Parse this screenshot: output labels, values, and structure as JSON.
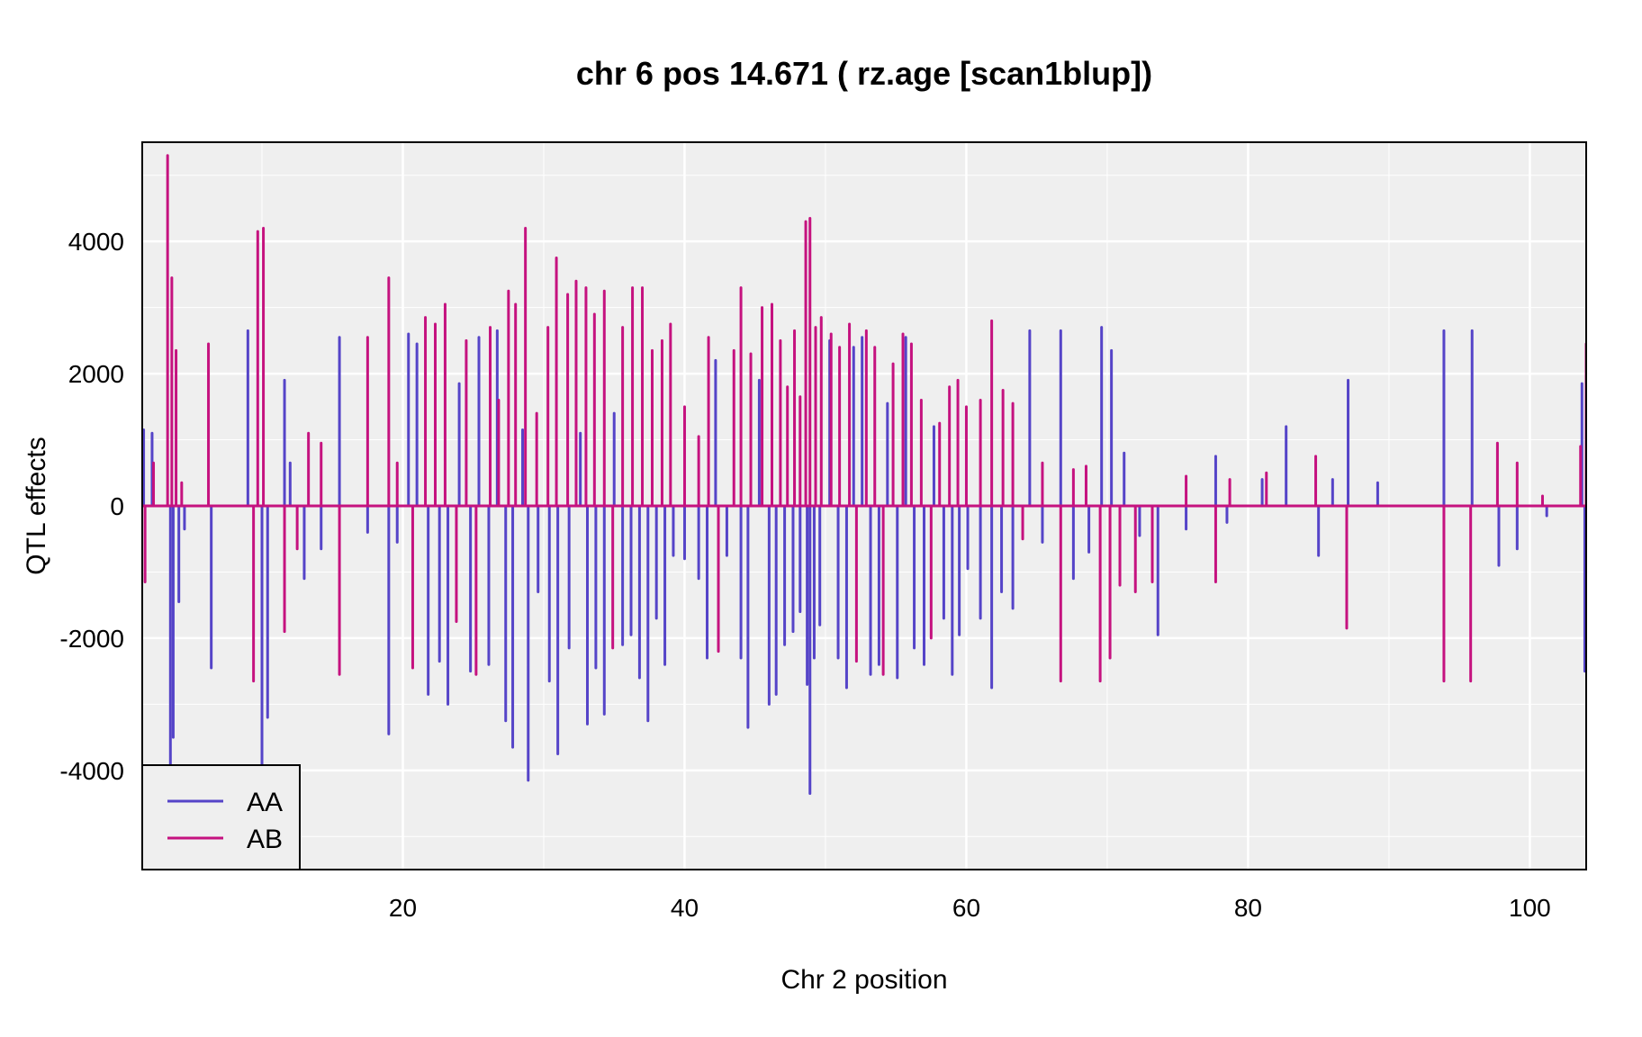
{
  "chart_data": {
    "type": "line",
    "title": "chr 6 pos 14.671 ( rz.age  [scan1blup])",
    "xlabel": "Chr 2 position",
    "ylabel": "QTL effects",
    "xlim": [
      1.5,
      104
    ],
    "ylim": [
      -5500,
      5500
    ],
    "x_ticks": [
      20,
      40,
      60,
      80,
      100
    ],
    "x_tick_labels": [
      "20",
      "40",
      "60",
      "80",
      "100"
    ],
    "y_ticks": [
      -4000,
      -2000,
      0,
      2000,
      4000
    ],
    "y_tick_labels": [
      "-4000",
      "-2000",
      "0",
      "2000",
      "4000"
    ],
    "grid": true,
    "background": "#efefef",
    "legend_position": "bottom-left",
    "series": [
      {
        "name": "AA",
        "color": "#5544c8",
        "spikes": [
          [
            1.6,
            1150
          ],
          [
            2.2,
            1100
          ],
          [
            3.5,
            -4000
          ],
          [
            3.7,
            -3500
          ],
          [
            4.1,
            -1450
          ],
          [
            4.5,
            -350
          ],
          [
            6.4,
            -2450
          ],
          [
            9.0,
            2650
          ],
          [
            10.0,
            -4000
          ],
          [
            10.4,
            -3200
          ],
          [
            11.6,
            1900
          ],
          [
            12.0,
            650
          ],
          [
            13.0,
            -1100
          ],
          [
            14.2,
            -650
          ],
          [
            15.5,
            2550
          ],
          [
            17.5,
            -400
          ],
          [
            19.0,
            -3450
          ],
          [
            19.6,
            -550
          ],
          [
            20.4,
            2600
          ],
          [
            21.0,
            2450
          ],
          [
            21.8,
            -2850
          ],
          [
            22.6,
            -2350
          ],
          [
            23.2,
            -3000
          ],
          [
            24.0,
            1850
          ],
          [
            24.8,
            -2500
          ],
          [
            25.4,
            2550
          ],
          [
            26.1,
            -2400
          ],
          [
            26.7,
            2650
          ],
          [
            27.3,
            -3250
          ],
          [
            27.8,
            -3650
          ],
          [
            28.5,
            1150
          ],
          [
            28.9,
            -4150
          ],
          [
            29.6,
            -1300
          ],
          [
            30.4,
            -2650
          ],
          [
            31.0,
            -3750
          ],
          [
            31.8,
            -2150
          ],
          [
            32.6,
            1100
          ],
          [
            33.1,
            -3300
          ],
          [
            33.7,
            -2450
          ],
          [
            34.3,
            -3150
          ],
          [
            35.0,
            1400
          ],
          [
            35.6,
            -2100
          ],
          [
            36.2,
            -1950
          ],
          [
            36.8,
            -2600
          ],
          [
            37.4,
            -3250
          ],
          [
            38.0,
            -1700
          ],
          [
            38.6,
            -2400
          ],
          [
            39.2,
            -750
          ],
          [
            40.0,
            -800
          ],
          [
            41.0,
            -1100
          ],
          [
            41.6,
            -2300
          ],
          [
            42.2,
            2200
          ],
          [
            43.0,
            -750
          ],
          [
            44.0,
            -2300
          ],
          [
            44.5,
            -3350
          ],
          [
            45.3,
            1900
          ],
          [
            46.0,
            -3000
          ],
          [
            46.5,
            -2850
          ],
          [
            47.1,
            -2100
          ],
          [
            47.7,
            -1900
          ],
          [
            48.2,
            -1600
          ],
          [
            48.7,
            -2700
          ],
          [
            48.9,
            -4350
          ],
          [
            49.2,
            -2300
          ],
          [
            49.6,
            -1800
          ],
          [
            50.3,
            2500
          ],
          [
            50.9,
            -2300
          ],
          [
            51.5,
            -2750
          ],
          [
            52.0,
            2400
          ],
          [
            52.6,
            2550
          ],
          [
            53.2,
            -2550
          ],
          [
            53.8,
            -2400
          ],
          [
            54.4,
            1550
          ],
          [
            55.1,
            -2600
          ],
          [
            55.7,
            2550
          ],
          [
            56.3,
            -2150
          ],
          [
            57.0,
            -2400
          ],
          [
            57.7,
            1200
          ],
          [
            58.4,
            -1700
          ],
          [
            59.0,
            -2550
          ],
          [
            59.5,
            -1950
          ],
          [
            60.1,
            -950
          ],
          [
            61.0,
            -1700
          ],
          [
            61.8,
            -2750
          ],
          [
            62.5,
            -1300
          ],
          [
            63.3,
            -1550
          ],
          [
            64.5,
            2650
          ],
          [
            65.4,
            -550
          ],
          [
            66.7,
            2650
          ],
          [
            67.6,
            -1100
          ],
          [
            68.7,
            -700
          ],
          [
            69.6,
            2700
          ],
          [
            70.3,
            2350
          ],
          [
            71.2,
            800
          ],
          [
            72.3,
            -450
          ],
          [
            73.6,
            -1950
          ],
          [
            75.6,
            -350
          ],
          [
            77.7,
            750
          ],
          [
            78.5,
            -250
          ],
          [
            81.0,
            400
          ],
          [
            82.7,
            1200
          ],
          [
            85.0,
            -750
          ],
          [
            86.0,
            400
          ],
          [
            87.1,
            1900
          ],
          [
            89.2,
            350
          ],
          [
            93.9,
            2650
          ],
          [
            95.9,
            2650
          ],
          [
            97.8,
            -900
          ],
          [
            99.1,
            -650
          ],
          [
            101.2,
            -150
          ],
          [
            103.7,
            1850
          ],
          [
            103.9,
            -2500
          ]
        ]
      },
      {
        "name": "AB",
        "color": "#c5127f",
        "spikes": [
          [
            1.7,
            -1150
          ],
          [
            2.3,
            650
          ],
          [
            3.3,
            5300
          ],
          [
            3.6,
            3450
          ],
          [
            3.9,
            2350
          ],
          [
            4.3,
            350
          ],
          [
            6.2,
            2450
          ],
          [
            9.4,
            -2650
          ],
          [
            9.7,
            4150
          ],
          [
            10.1,
            4200
          ],
          [
            11.6,
            -1900
          ],
          [
            12.5,
            -650
          ],
          [
            13.3,
            1100
          ],
          [
            14.2,
            950
          ],
          [
            15.5,
            -2550
          ],
          [
            17.5,
            2550
          ],
          [
            19.0,
            3450
          ],
          [
            19.6,
            650
          ],
          [
            20.7,
            -2450
          ],
          [
            21.6,
            2850
          ],
          [
            22.3,
            2750
          ],
          [
            23.0,
            3050
          ],
          [
            23.8,
            -1750
          ],
          [
            24.5,
            2500
          ],
          [
            25.2,
            -2550
          ],
          [
            26.2,
            2700
          ],
          [
            26.8,
            1600
          ],
          [
            27.5,
            3250
          ],
          [
            28.0,
            3050
          ],
          [
            28.7,
            4200
          ],
          [
            29.5,
            1400
          ],
          [
            30.3,
            2700
          ],
          [
            30.9,
            3750
          ],
          [
            31.7,
            3200
          ],
          [
            32.3,
            3400
          ],
          [
            33.0,
            3300
          ],
          [
            33.6,
            2900
          ],
          [
            34.3,
            3250
          ],
          [
            34.9,
            -2150
          ],
          [
            35.6,
            2700
          ],
          [
            36.3,
            3300
          ],
          [
            37.0,
            3300
          ],
          [
            37.7,
            2350
          ],
          [
            38.4,
            2500
          ],
          [
            39.0,
            2750
          ],
          [
            40.0,
            1500
          ],
          [
            41.0,
            1050
          ],
          [
            41.7,
            2550
          ],
          [
            42.4,
            -2200
          ],
          [
            43.5,
            2350
          ],
          [
            44.0,
            3300
          ],
          [
            44.7,
            2300
          ],
          [
            45.5,
            3000
          ],
          [
            46.2,
            3050
          ],
          [
            46.8,
            2500
          ],
          [
            47.3,
            1800
          ],
          [
            47.8,
            2650
          ],
          [
            48.2,
            1650
          ],
          [
            48.6,
            4300
          ],
          [
            48.9,
            4350
          ],
          [
            49.3,
            2700
          ],
          [
            49.7,
            2850
          ],
          [
            50.4,
            2600
          ],
          [
            51.0,
            2400
          ],
          [
            51.7,
            2750
          ],
          [
            52.2,
            -2350
          ],
          [
            52.9,
            2650
          ],
          [
            53.5,
            2400
          ],
          [
            54.1,
            -2550
          ],
          [
            54.8,
            2150
          ],
          [
            55.5,
            2600
          ],
          [
            56.1,
            2450
          ],
          [
            56.8,
            1600
          ],
          [
            57.5,
            -2000
          ],
          [
            58.1,
            1250
          ],
          [
            58.8,
            1800
          ],
          [
            59.4,
            1900
          ],
          [
            60.0,
            1500
          ],
          [
            61.0,
            1600
          ],
          [
            61.8,
            2800
          ],
          [
            62.6,
            1750
          ],
          [
            63.3,
            1550
          ],
          [
            64.0,
            -500
          ],
          [
            65.4,
            650
          ],
          [
            66.7,
            -2650
          ],
          [
            67.6,
            550
          ],
          [
            68.5,
            600
          ],
          [
            69.5,
            -2650
          ],
          [
            70.2,
            -2300
          ],
          [
            70.9,
            -1200
          ],
          [
            72.0,
            -1300
          ],
          [
            73.2,
            -1150
          ],
          [
            75.6,
            450
          ],
          [
            77.7,
            -1150
          ],
          [
            78.7,
            400
          ],
          [
            81.3,
            500
          ],
          [
            84.8,
            750
          ],
          [
            87.0,
            -1850
          ],
          [
            93.9,
            -2650
          ],
          [
            95.8,
            -2650
          ],
          [
            97.7,
            950
          ],
          [
            99.1,
            650
          ],
          [
            100.9,
            150
          ],
          [
            103.6,
            900
          ],
          [
            104.0,
            2450
          ]
        ]
      }
    ]
  }
}
